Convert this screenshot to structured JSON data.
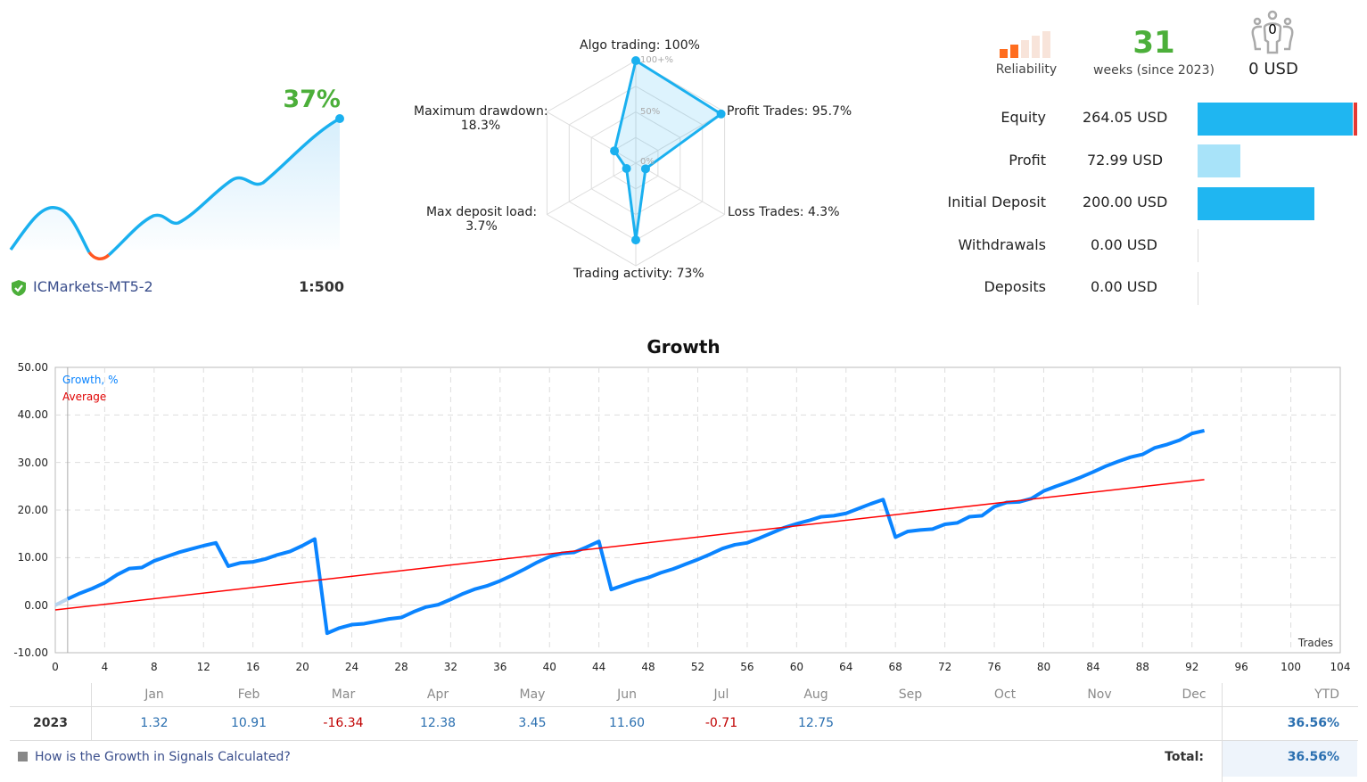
{
  "summary": {
    "growth_percent": "37%",
    "broker": "ICMarkets-MT5-2",
    "leverage": "1:500",
    "verified_icon": "shield-check-icon",
    "reliability_label": "Reliability",
    "reliability_level": 2,
    "reliability_max": 5,
    "weeks": "31",
    "weeks_label": "weeks (since 2023)",
    "subscribers": "0",
    "subscribers_funds": "0 USD"
  },
  "radar": {
    "axes": [
      {
        "label": "Algo trading: 100%",
        "value": 100
      },
      {
        "label": "Profit Trades: 95.7%",
        "value": 95.7
      },
      {
        "label": "Loss Trades: 4.3%",
        "value": 4.3
      },
      {
        "label": "Trading activity: 73%",
        "value": 73
      },
      {
        "label_line1": "Max deposit load:",
        "label_line2": "3.7%",
        "value": 3.7
      },
      {
        "label_line1": "Maximum drawdown:",
        "label_line2": "18.3%",
        "value": 18.3
      }
    ],
    "ring_labels": {
      "max": "100+%",
      "mid": "50%",
      "zero": "0%"
    },
    "color": "#1ab0ef"
  },
  "stats": [
    {
      "label": "Equity",
      "value": "264.05 USD",
      "bar_fraction": 0.88,
      "color": "#1fb6f1"
    },
    {
      "label": "Profit",
      "value": "72.99 USD",
      "bar_fraction": 0.24,
      "color": "#a8e3f9"
    },
    {
      "label": "Initial Deposit",
      "value": "200.00 USD",
      "bar_fraction": 0.66,
      "color": "#1fb6f1"
    },
    {
      "label": "Withdrawals",
      "value": "0.00 USD",
      "bar_fraction": 0
    },
    {
      "label": "Deposits",
      "value": "0.00 USD",
      "bar_fraction": 0
    }
  ],
  "chart_data": {
    "type": "line",
    "title": "Growth",
    "xlabel": "Trades",
    "ylabel": "",
    "xlim": [
      0,
      104
    ],
    "ylim": [
      -10,
      50
    ],
    "x_ticks": [
      0,
      4,
      8,
      12,
      16,
      20,
      24,
      28,
      32,
      36,
      40,
      44,
      48,
      52,
      56,
      60,
      64,
      68,
      72,
      76,
      80,
      84,
      88,
      92,
      96,
      100,
      104
    ],
    "y_ticks": [
      "50.00",
      "40.00",
      "30.00",
      "20.00",
      "10.00",
      "0.00",
      "-10.00"
    ],
    "grid": true,
    "legend_placement": "top-left",
    "series": [
      {
        "name": "Growth, %",
        "color": "#0a84ff",
        "values": [
          0,
          1.3,
          2.5,
          3.5,
          4.7,
          6.4,
          7.7,
          7.9,
          9.3,
          10.2,
          11.1,
          11.8,
          12.5,
          13.1,
          8.2,
          8.9,
          9.1,
          9.7,
          10.6,
          11.3,
          12.5,
          13.9,
          -5.9,
          -4.8,
          -4.1,
          -3.9,
          -3.4,
          -2.9,
          -2.6,
          -1.4,
          -0.4,
          0.1,
          1.2,
          2.4,
          3.4,
          4.1,
          5.1,
          6.3,
          7.6,
          9.0,
          10.2,
          10.9,
          11.1,
          12.2,
          13.4,
          3.3,
          4.2,
          5.1,
          5.8,
          6.8,
          7.6,
          8.6,
          9.6,
          10.7,
          11.9,
          12.7,
          13.1,
          14.1,
          15.2,
          16.3,
          17.1,
          17.8,
          18.6,
          18.8,
          19.3,
          20.3,
          21.3,
          22.2,
          14.3,
          15.5,
          15.8,
          16.0,
          17.0,
          17.3,
          18.6,
          18.8,
          20.7,
          21.6,
          21.7,
          22.4,
          24.0,
          25.0,
          25.9,
          26.9,
          28.0,
          29.2,
          30.2,
          31.1,
          31.7,
          33.1,
          33.8,
          34.7,
          36.1,
          36.7
        ]
      },
      {
        "name": "Average",
        "color": "#ff0000",
        "x": [
          0,
          93
        ],
        "values": [
          -1.0,
          26.4
        ]
      }
    ]
  },
  "table": {
    "months": [
      "Jan",
      "Feb",
      "Mar",
      "Apr",
      "May",
      "Jun",
      "Jul",
      "Aug",
      "Sep",
      "Oct",
      "Nov",
      "Dec"
    ],
    "ytd_label": "YTD",
    "rows": [
      {
        "year": "2023",
        "values": [
          "1.32",
          "10.91",
          "-16.34",
          "12.38",
          "3.45",
          "11.60",
          "-0.71",
          "12.75",
          "",
          "",
          "",
          ""
        ],
        "ytd": "36.56%"
      }
    ],
    "total_label": "Total:",
    "total_value": "36.56%",
    "help_link": "How is the Growth in Signals Calculated?"
  }
}
